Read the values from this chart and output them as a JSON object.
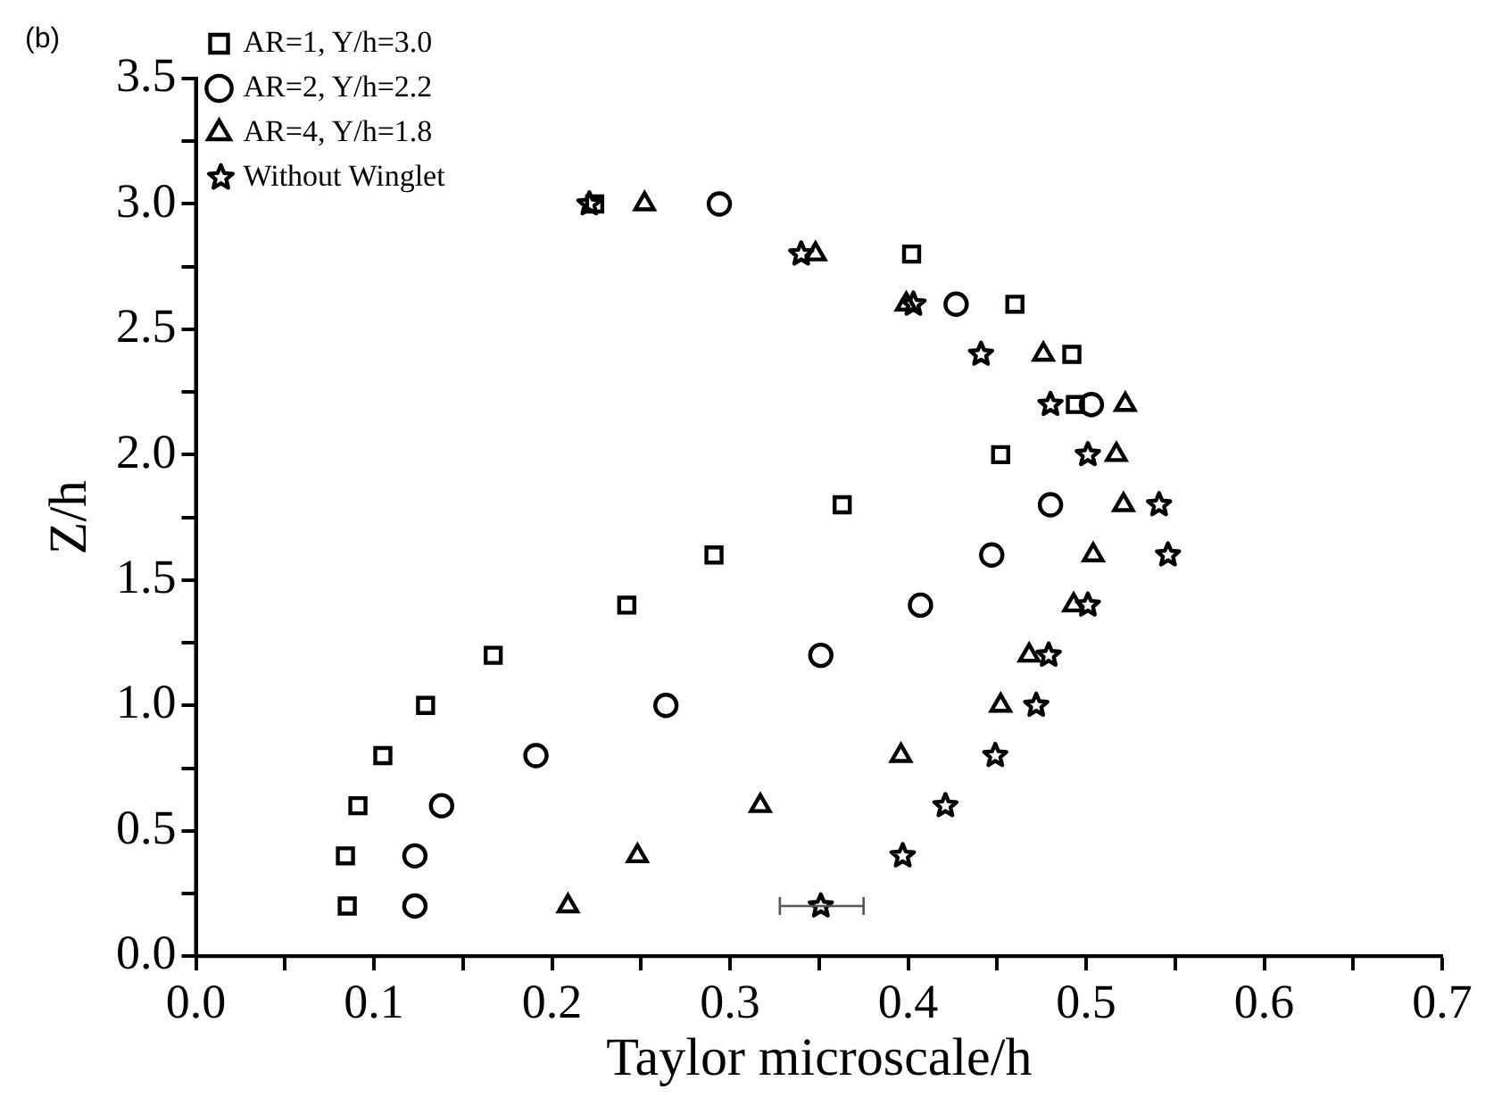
{
  "chart_data": {
    "type": "scatter",
    "xlabel": "Taylor microscale/h",
    "ylabel": "Z/h",
    "annotations": [
      "(b)"
    ],
    "xlim": [
      0,
      0.7
    ],
    "ylim": [
      0,
      3.5
    ],
    "xticks": [
      {
        "value": 0,
        "label": "0.0"
      },
      {
        "value": 0.05,
        "label": null
      },
      {
        "value": 0.1,
        "label": "0.1"
      },
      {
        "value": 0.15,
        "label": null
      },
      {
        "value": 0.2,
        "label": "0.2"
      },
      {
        "value": 0.25,
        "label": null
      },
      {
        "value": 0.3,
        "label": "0.3"
      },
      {
        "value": 0.35,
        "label": null
      },
      {
        "value": 0.4,
        "label": "0.4"
      },
      {
        "value": 0.45,
        "label": null
      },
      {
        "value": 0.5,
        "label": "0.5"
      },
      {
        "value": 0.55,
        "label": null
      },
      {
        "value": 0.6,
        "label": "0.6"
      },
      {
        "value": 0.65,
        "label": null
      },
      {
        "value": 0.7,
        "label": "0.7"
      }
    ],
    "yticks": [
      {
        "value": 0,
        "label": "0.0"
      },
      {
        "value": 0.25,
        "label": null
      },
      {
        "value": 0.5,
        "label": "0.5"
      },
      {
        "value": 0.75,
        "label": null
      },
      {
        "value": 1,
        "label": "1.0"
      },
      {
        "value": 1.25,
        "label": null
      },
      {
        "value": 1.5,
        "label": "1.5"
      },
      {
        "value": 1.75,
        "label": null
      },
      {
        "value": 2,
        "label": "2.0"
      },
      {
        "value": 2.25,
        "label": null
      },
      {
        "value": 2.5,
        "label": "2.5"
      },
      {
        "value": 2.75,
        "label": null
      },
      {
        "value": 3,
        "label": "3.0"
      },
      {
        "value": 3.25,
        "label": null
      },
      {
        "value": 3.5,
        "label": "3.5"
      }
    ],
    "grid": false,
    "legend": "top left",
    "series": [
      {
        "name": "AR=1, Y/h=3.0",
        "color": "#000000",
        "marker": "square",
        "x": [
          0.085,
          0.084,
          0.091,
          0.105,
          0.129,
          0.167,
          0.242,
          0.291,
          0.363,
          0.452,
          0.494,
          0.492,
          0.46,
          0.402,
          0.224
        ],
        "values": [
          0.2,
          0.4,
          0.6,
          0.8,
          1.0,
          1.2,
          1.4,
          1.6,
          1.8,
          2.0,
          2.2,
          2.4,
          2.6,
          2.8,
          3.0
        ]
      },
      {
        "name": "AR=2, Y/h=2.2",
        "color": "#000000",
        "marker": "circle",
        "x": [
          0.123,
          0.123,
          0.138,
          0.191,
          0.264,
          0.351,
          0.407,
          0.447,
          0.48,
          0.503,
          0.427,
          0.294
        ],
        "values": [
          0.2,
          0.4,
          0.6,
          0.8,
          1.0,
          1.2,
          1.4,
          1.6,
          1.8,
          2.2,
          2.6,
          3.0
        ]
      },
      {
        "name": "AR=4, Y/h=1.8",
        "color": "#000000",
        "marker": "triangle",
        "x": [
          0.209,
          0.248,
          0.317,
          0.396,
          0.452,
          0.468,
          0.493,
          0.504,
          0.521,
          0.517,
          0.522,
          0.476,
          0.399,
          0.348,
          0.252
        ],
        "values": [
          0.2,
          0.4,
          0.6,
          0.8,
          1.0,
          1.2,
          1.4,
          1.6,
          1.8,
          2.0,
          2.2,
          2.4,
          2.6,
          2.8,
          3.0
        ]
      },
      {
        "name": "Without Winglet",
        "color": "#000000",
        "marker": "star",
        "x": [
          0.351,
          0.397,
          0.421,
          0.449,
          0.472,
          0.479,
          0.501,
          0.546,
          0.541,
          0.501,
          0.48,
          0.441,
          0.403,
          0.34,
          0.221
        ],
        "values": [
          0.2,
          0.4,
          0.6,
          0.8,
          1.0,
          1.2,
          1.4,
          1.6,
          1.8,
          2.0,
          2.2,
          2.4,
          2.6,
          2.8,
          3.0
        ],
        "xerrors": [
          [
            0.328,
            0.375
          ],
          null,
          null,
          null,
          null,
          null,
          null,
          null,
          null,
          null,
          null,
          null,
          null,
          null,
          null
        ]
      }
    ]
  }
}
